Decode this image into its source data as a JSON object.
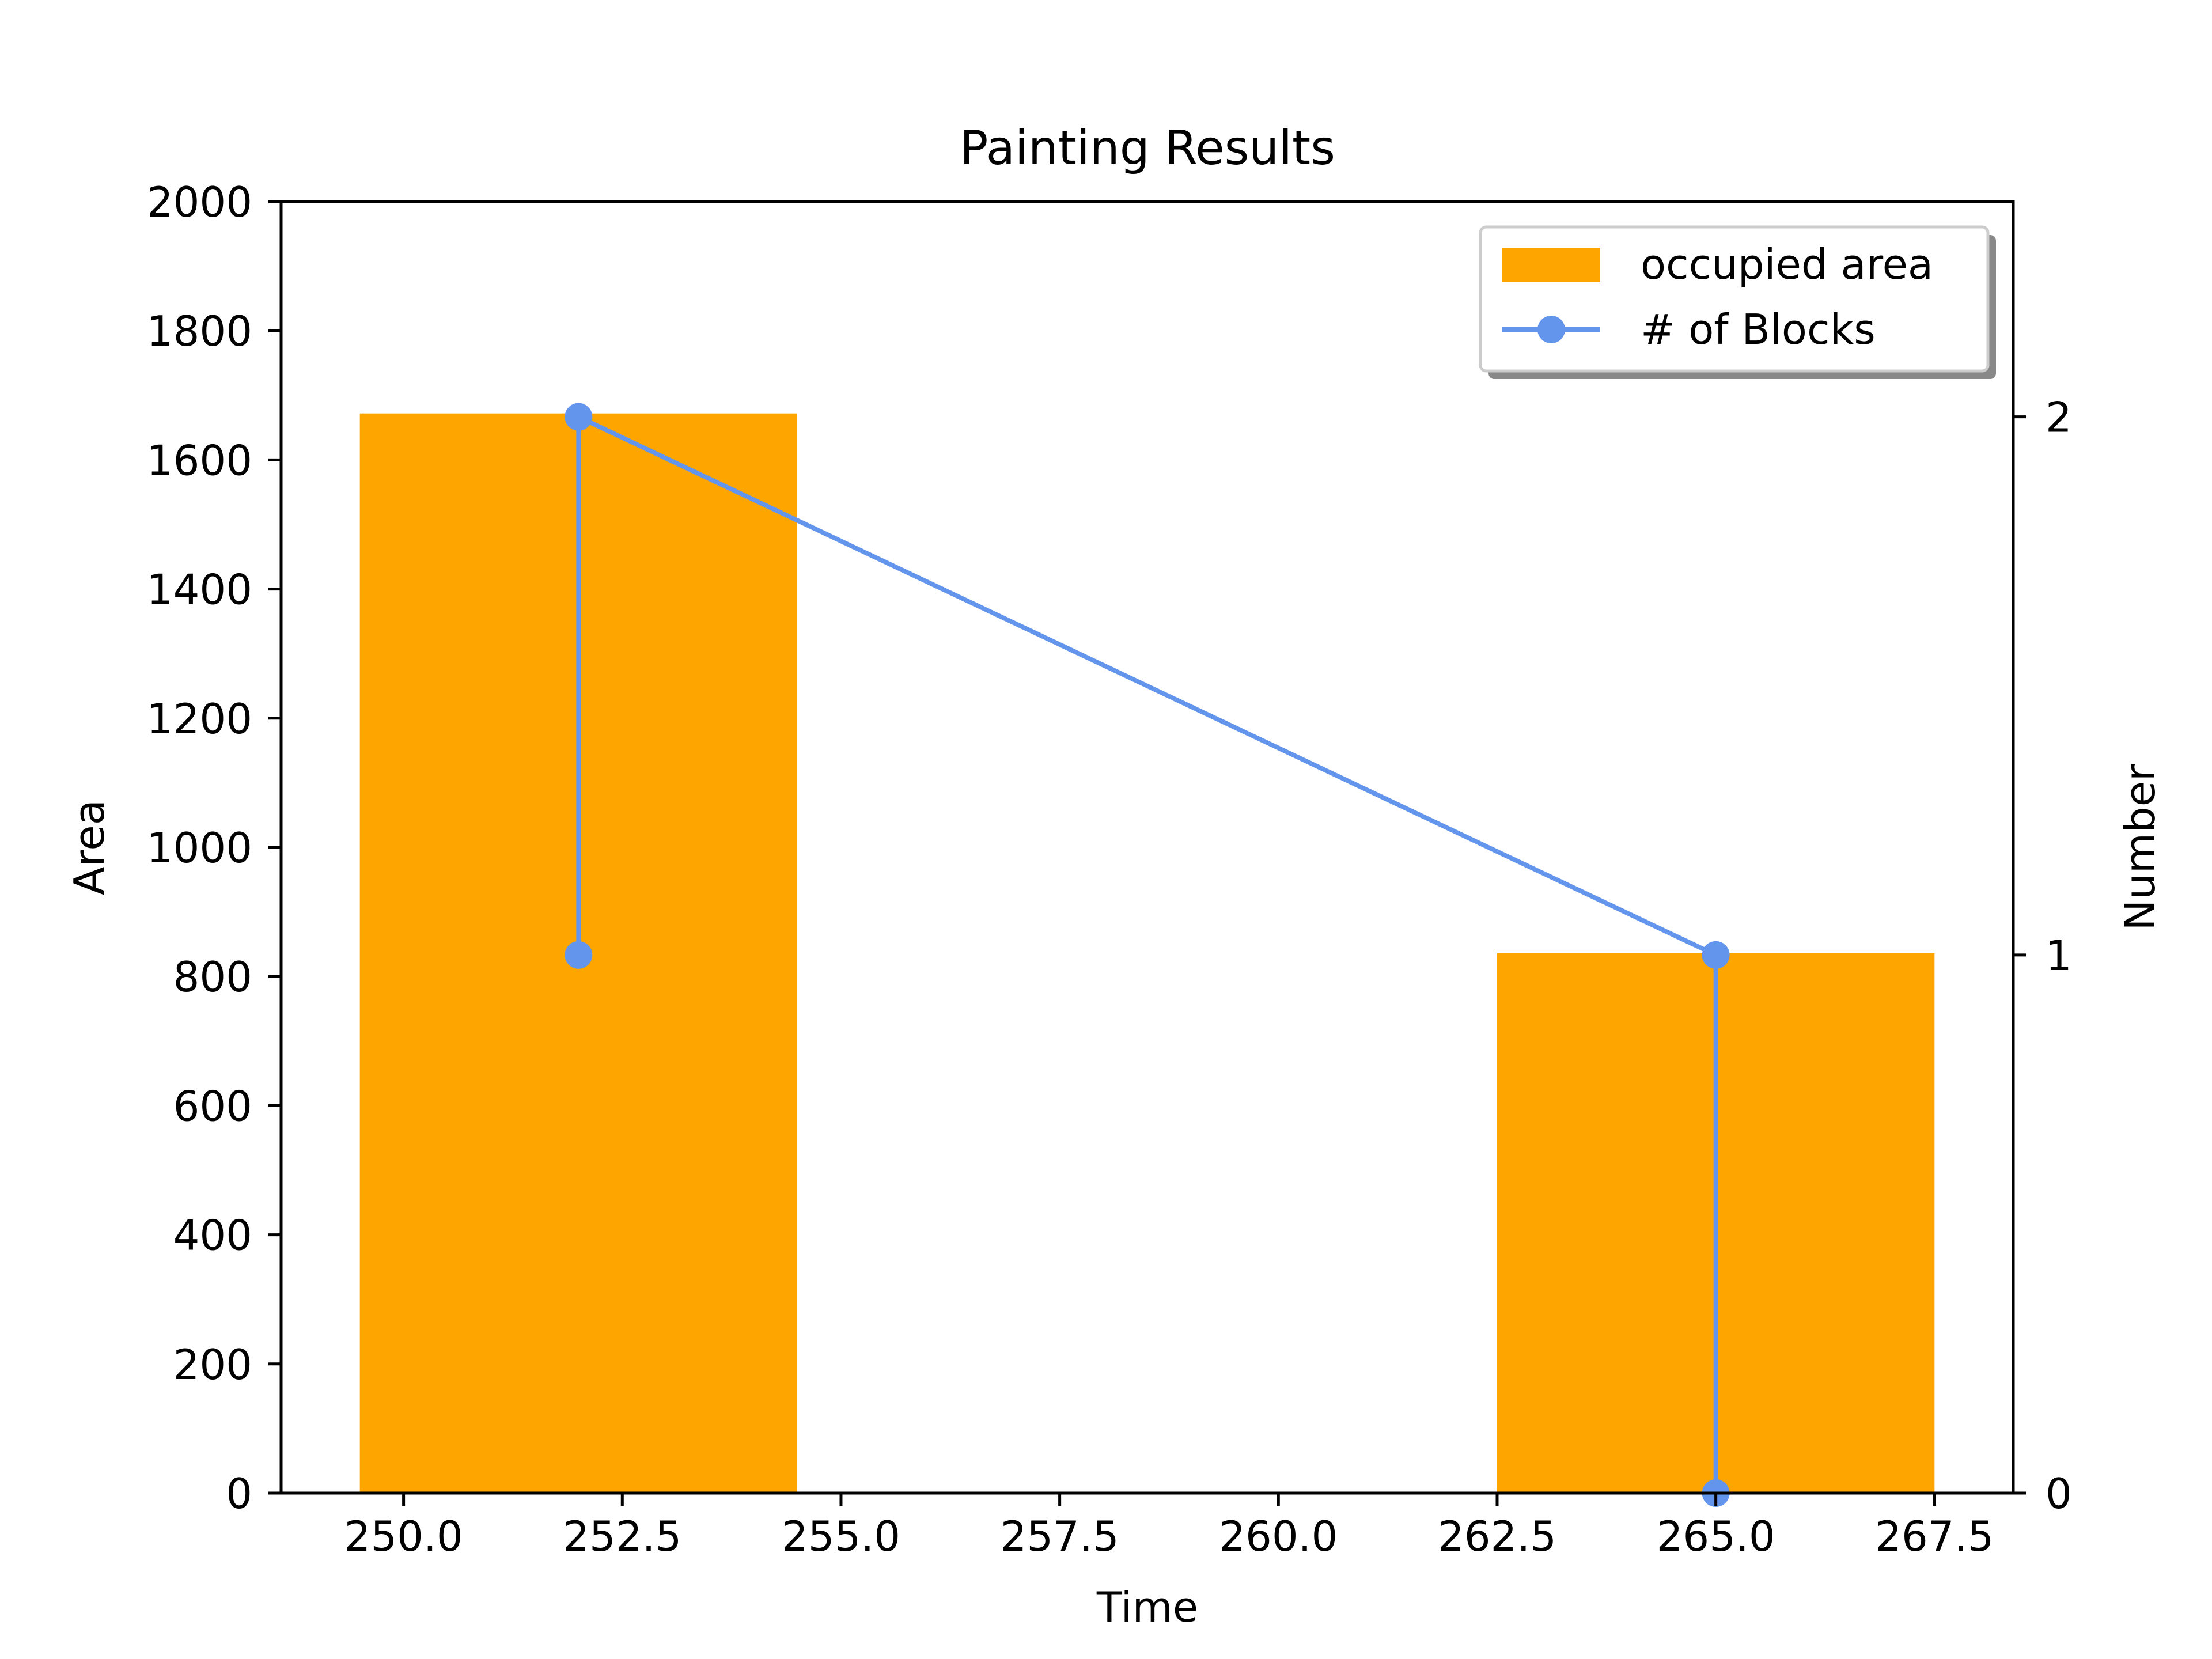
{
  "chart_data": {
    "type": "bar+line",
    "title": "Painting Results",
    "xlabel": "Time",
    "ylabel": "Area",
    "y2label": "Number",
    "xlim": [
      248.6,
      268.4
    ],
    "ylim": [
      0,
      2000
    ],
    "y2lim": [
      0,
      2.4
    ],
    "x_ticks": [
      250.0,
      252.5,
      255.0,
      257.5,
      260.0,
      262.5,
      265.0,
      267.5
    ],
    "x_tick_labels": [
      "250.0",
      "252.5",
      "255.0",
      "257.5",
      "260.0",
      "262.5",
      "265.0",
      "267.5"
    ],
    "y_ticks": [
      0,
      200,
      400,
      600,
      800,
      1000,
      1200,
      1400,
      1600,
      1800,
      2000
    ],
    "y_tick_labels": [
      "0",
      "200",
      "400",
      "600",
      "800",
      "1000",
      "1200",
      "1400",
      "1600",
      "1800",
      "2000"
    ],
    "y2_ticks": [
      0,
      1,
      2
    ],
    "y2_tick_labels": [
      "0",
      "1",
      "2"
    ],
    "bars": {
      "name": "occupied area",
      "color": "#FFA500",
      "items": [
        {
          "x": 252,
          "width": 5,
          "value": 1672
        },
        {
          "x": 265,
          "width": 5,
          "value": 836
        }
      ]
    },
    "line": {
      "name": "# of Blocks",
      "color": "#6495ED",
      "axis": "right",
      "points": [
        {
          "x": 252,
          "y": 1
        },
        {
          "x": 252,
          "y": 2
        },
        {
          "x": 265,
          "y": 1
        },
        {
          "x": 265,
          "y": 0
        }
      ]
    },
    "legend_position": "top-right",
    "grid": false
  }
}
